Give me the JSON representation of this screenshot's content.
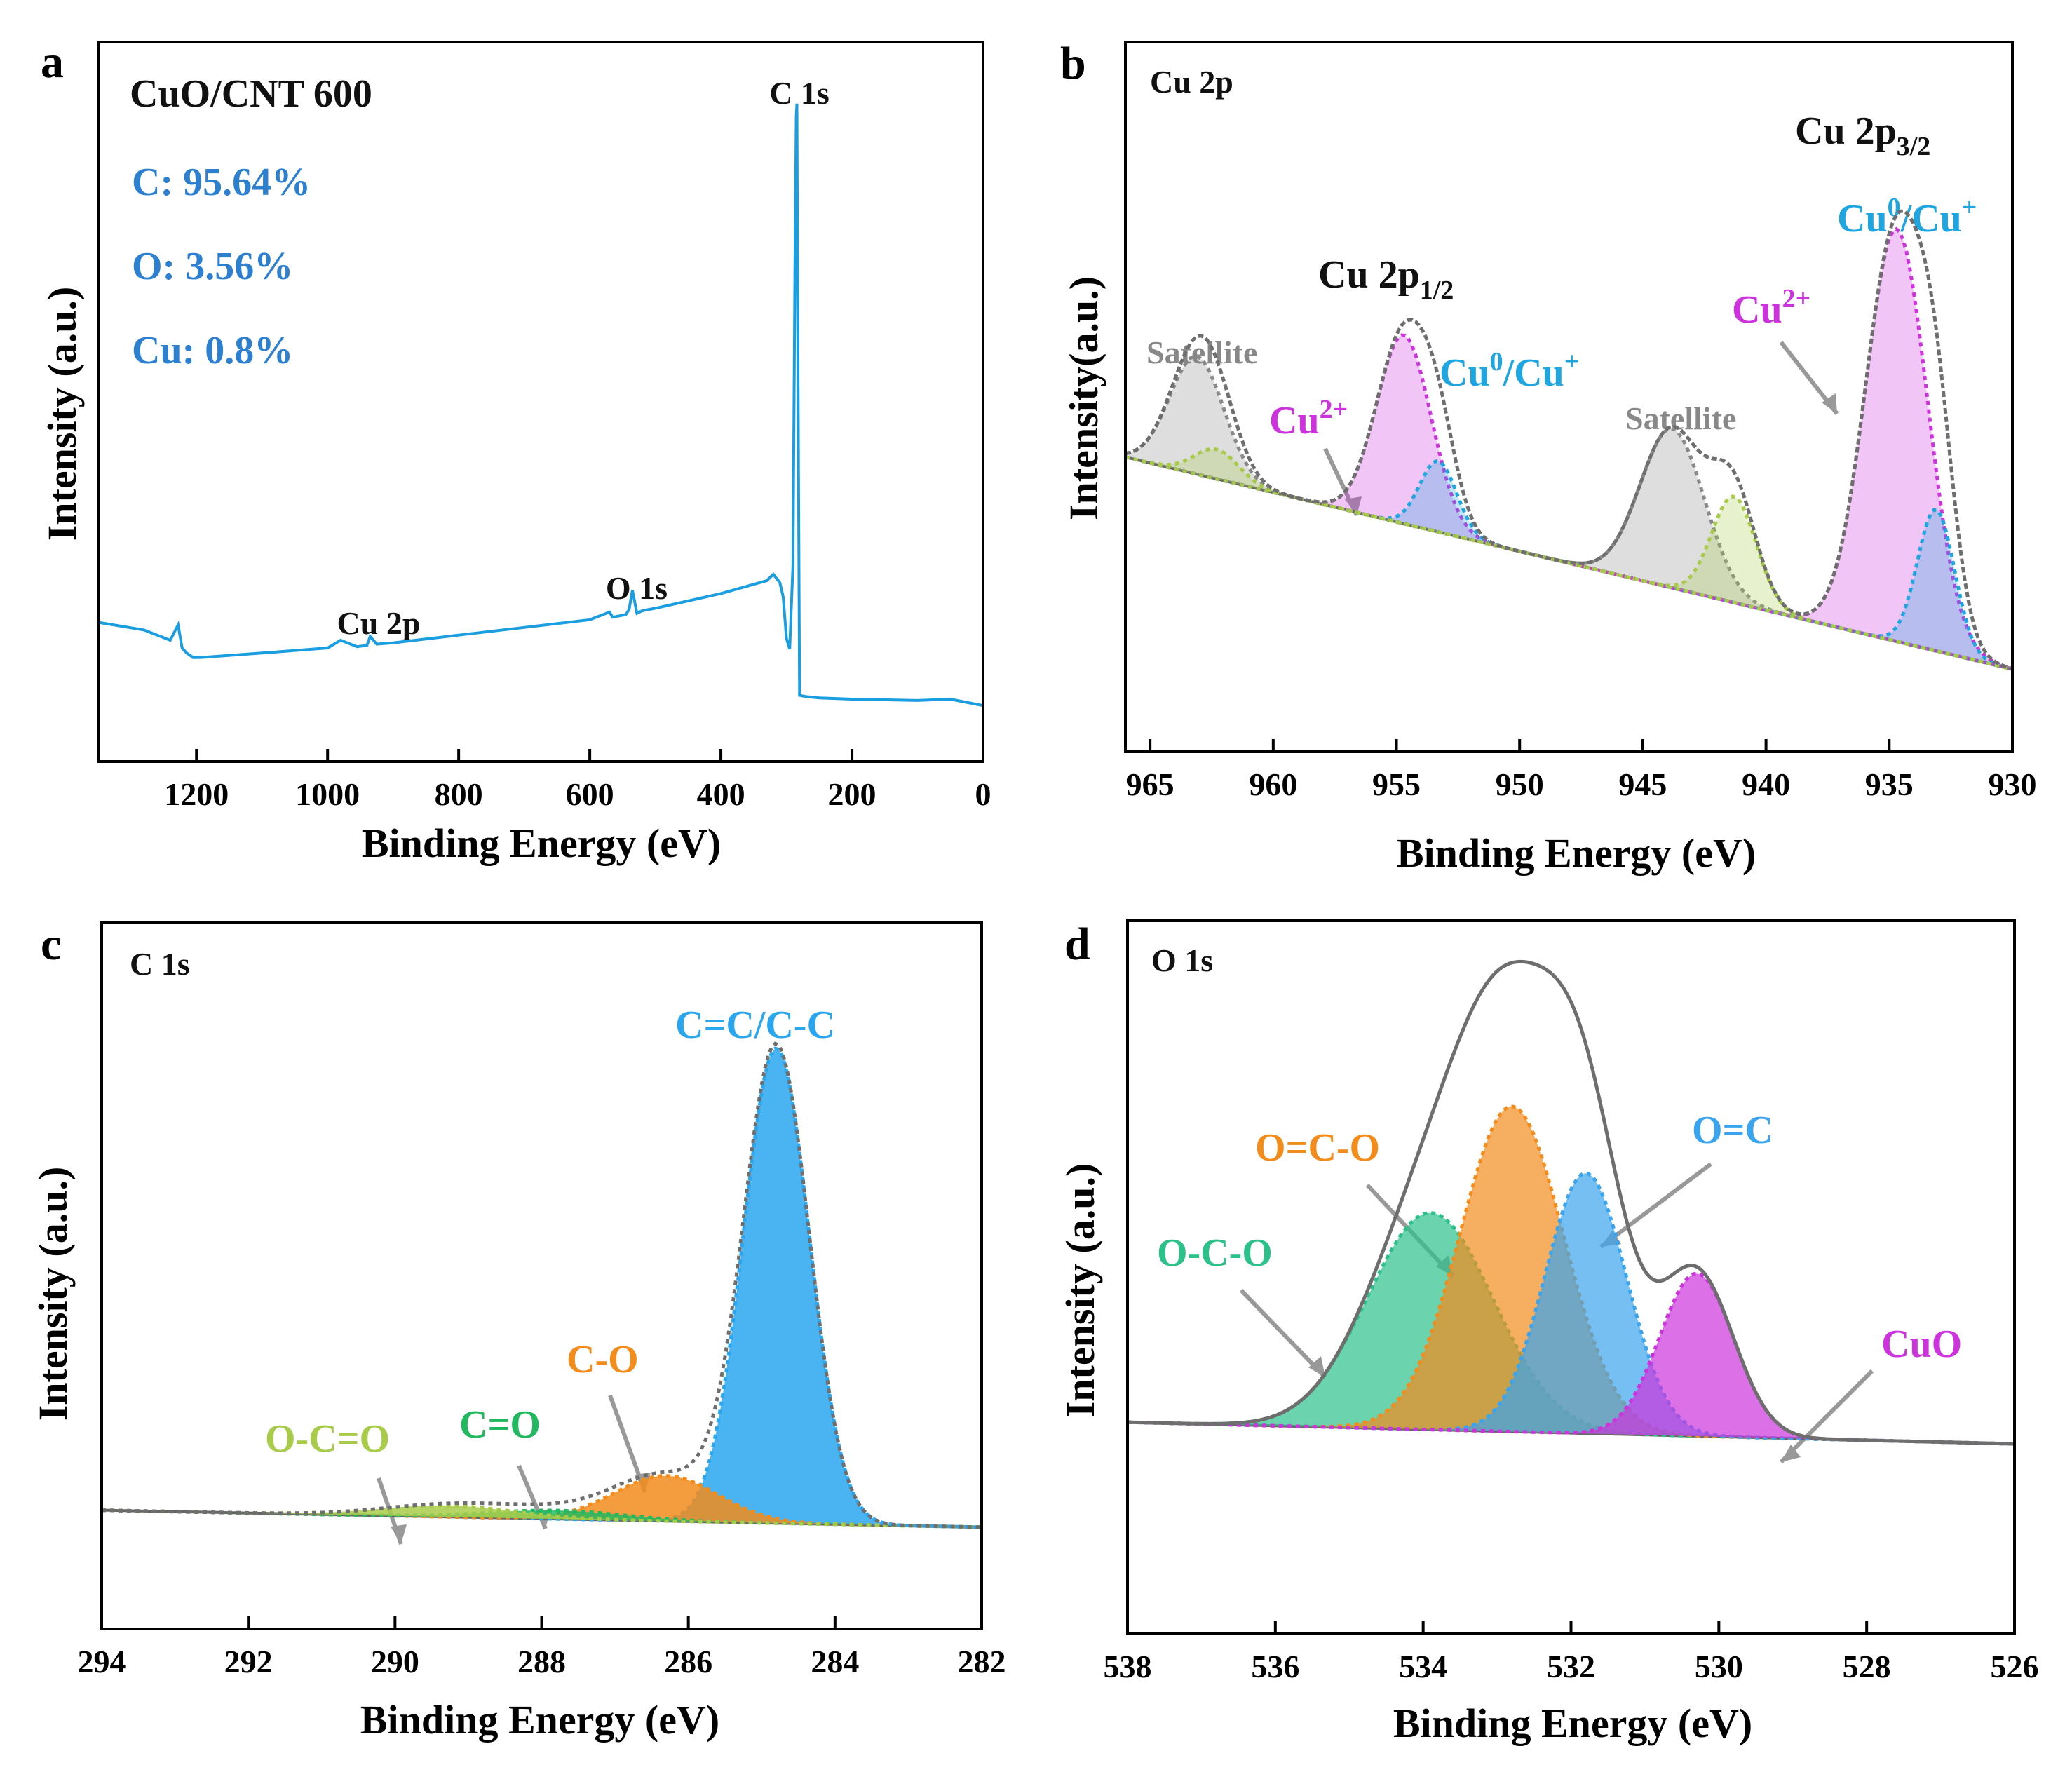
{
  "colors": {
    "survey": "#1a9ee0",
    "cu2plus": "#cc33dd",
    "cu0": "#1fa6e0",
    "satellite": "#888888",
    "carbon_cc": "#2aa6ee",
    "carbon_co": "#f28c1c",
    "carbon_cdo": "#22b860",
    "carbon_ocdo": "#a8cc4a",
    "envelope": "#6e6e6e",
    "text_blue": "#2d7fd0",
    "oxygen_ocdo": "#2cc08a",
    "oxygen_ocm": "#f28c1c",
    "oxygen_oc": "#3aa4ee",
    "oxygen_cuo": "#cc33dd"
  },
  "chart_data": [
    {
      "panel": "a",
      "type": "line",
      "title": "CuO/CNT 600",
      "xlabel": "Binding Energy (eV)",
      "ylabel": "Intensity (a.u.)",
      "xlim": [
        1350,
        0
      ],
      "ylim": [
        0,
        100
      ],
      "xticks": [
        1200,
        1000,
        800,
        600,
        400,
        200,
        0
      ],
      "composition": [
        "C: 95.64%",
        "O: 3.56%",
        "Cu: 0.8%"
      ],
      "peak_labels": [
        {
          "text": "C 1s",
          "x": 284.8
        },
        {
          "text": "O 1s",
          "x": 532
        },
        {
          "text": "Cu 2p",
          "x": 933
        }
      ],
      "series": [
        {
          "name": "survey",
          "x": [
            1350,
            1280,
            1240,
            1228,
            1222,
            1215,
            1205,
            1195,
            1100,
            1000,
            980,
            970,
            955,
            940,
            935,
            925,
            900,
            800,
            700,
            600,
            570,
            565,
            545,
            540,
            535,
            528,
            520,
            500,
            400,
            330,
            320,
            310,
            305,
            300,
            295,
            290,
            287,
            285,
            284,
            283,
            280,
            270,
            250,
            200,
            100,
            50,
            20,
            0
          ],
          "y": [
            15,
            13.8,
            12.2,
            14.6,
            11,
            10.2,
            9.5,
            9.5,
            10.2,
            11,
            12.2,
            11.8,
            11.2,
            11.4,
            12.8,
            11.6,
            11.8,
            13,
            14.2,
            15.4,
            16.6,
            15.8,
            16.2,
            17,
            20,
            16.4,
            16.8,
            17.2,
            19.5,
            21.5,
            22.5,
            21.2,
            19,
            12.5,
            10.8,
            24,
            70,
            94,
            96,
            70,
            3.6,
            3.4,
            3.2,
            3,
            2.8,
            3,
            2.4,
            2
          ]
        }
      ]
    },
    {
      "panel": "b",
      "type": "line",
      "title": "Cu 2p",
      "xlabel": "Binding Energy (eV)",
      "ylabel": "Intensity(a.u.)",
      "xlim": [
        966,
        930
      ],
      "ylim": [
        0,
        100
      ],
      "xticks": [
        965,
        960,
        955,
        950,
        945,
        940,
        935,
        930
      ],
      "annotations": [
        {
          "text": "Cu 2p",
          "sub": "1/2",
          "color": "#111111"
        },
        {
          "text": "Cu 2p",
          "sub": "3/2",
          "color": "#111111"
        },
        {
          "text": "Cu",
          "sup": "0",
          "suffix": "/Cu",
          "sup2": "+",
          "color": "#1fa6e0"
        },
        {
          "text": "Cu",
          "sup": "0",
          "suffix": "/Cu",
          "sup2": "+",
          "color": "#1fa6e0"
        },
        {
          "text": "Cu",
          "sup": "2+",
          "color": "#cc33dd"
        },
        {
          "text": "Cu",
          "sup": "2+",
          "color": "#cc33dd"
        },
        {
          "text": "Satellite",
          "color": "#888888"
        },
        {
          "text": "Satellite",
          "color": "#888888"
        }
      ],
      "background": {
        "x": [
          966,
          930
        ],
        "y": [
          44,
          8
        ]
      },
      "peaks": [
        {
          "name": "Cu2+ 2p3/2",
          "center": 934.7,
          "height": 70,
          "width": 1.25,
          "color": "#cc33dd"
        },
        {
          "name": "Cu0/Cu+ 2p3/2",
          "center": 933.1,
          "height": 24,
          "width": 0.75,
          "color": "#1fa6e0"
        },
        {
          "name": "Cu2+ 2p1/2",
          "center": 954.7,
          "height": 32,
          "width": 1.1,
          "color": "#cc33dd"
        },
        {
          "name": "Cu0/Cu+ 2p1/2",
          "center": 953.3,
          "height": 12,
          "width": 0.75,
          "color": "#1fa6e0"
        },
        {
          "name": "Satellite 1",
          "center": 943.8,
          "height": 27,
          "width": 1.3,
          "color": "#888888"
        },
        {
          "name": "Satellite 2",
          "center": 941.3,
          "height": 18,
          "width": 0.9,
          "color": "#a8cc4a"
        },
        {
          "name": "Satellite 3",
          "center": 963.1,
          "height": 20,
          "width": 1.1,
          "color": "#888888"
        },
        {
          "name": "Satellite 4",
          "center": 962.3,
          "height": 5,
          "width": 0.9,
          "color": "#a8cc4a"
        }
      ]
    },
    {
      "panel": "c",
      "type": "area",
      "title": "C 1s",
      "xlabel": "Binding Energy (eV)",
      "ylabel": "Intensity (a.u.)",
      "xlim": [
        294,
        282
      ],
      "ylim": [
        0,
        100
      ],
      "xticks": [
        294,
        292,
        290,
        288,
        286,
        284,
        282
      ],
      "annotations": [
        {
          "text": "C=C/C-C",
          "color": "#2aa6ee"
        },
        {
          "text": "C-O",
          "color": "#f28c1c"
        },
        {
          "text": "C=O",
          "color": "#22b860"
        },
        {
          "text": "O-C=O",
          "color": "#a8cc4a"
        }
      ],
      "background": {
        "x": [
          294,
          282
        ],
        "y": [
          6,
          3
        ]
      },
      "peaks": [
        {
          "name": "C=C/C-C",
          "center": 284.8,
          "height": 84,
          "width": 0.45,
          "color": "#2aa6ee"
        },
        {
          "name": "C-O",
          "center": 286.3,
          "height": 8,
          "width": 0.7,
          "color": "#f28c1c"
        },
        {
          "name": "C=O",
          "center": 287.8,
          "height": 1.5,
          "width": 0.9,
          "color": "#22b860"
        },
        {
          "name": "O-C=O",
          "center": 289.3,
          "height": 2,
          "width": 0.9,
          "color": "#a8cc4a"
        }
      ]
    },
    {
      "panel": "d",
      "type": "area",
      "title": "O 1s",
      "xlabel": "Binding Energy (eV)",
      "ylabel": "Intensity (a.u.)",
      "xlim": [
        538,
        526
      ],
      "ylim": [
        0,
        100
      ],
      "xticks": [
        538,
        536,
        534,
        532,
        530,
        528,
        526
      ],
      "annotations": [
        {
          "text": "O=C",
          "color": "#3aa4ee"
        },
        {
          "text": "O=C-O",
          "color": "#f28c1c"
        },
        {
          "text": "O-C-O",
          "color": "#2cc08a"
        },
        {
          "text": "CuO",
          "color": "#cc33dd"
        }
      ],
      "background": {
        "x": [
          538,
          526
        ],
        "y": [
          18,
          14
        ]
      },
      "peaks": [
        {
          "name": "O-C-O",
          "center": 533.9,
          "height": 40,
          "width": 0.85,
          "color": "#2cc08a"
        },
        {
          "name": "O=C-O",
          "center": 532.8,
          "height": 60,
          "width": 0.7,
          "color": "#f28c1c"
        },
        {
          "name": "O=C",
          "center": 531.8,
          "height": 48,
          "width": 0.55,
          "color": "#3aa4ee"
        },
        {
          "name": "CuO",
          "center": 530.3,
          "height": 30,
          "width": 0.5,
          "color": "#cc33dd"
        }
      ]
    }
  ]
}
